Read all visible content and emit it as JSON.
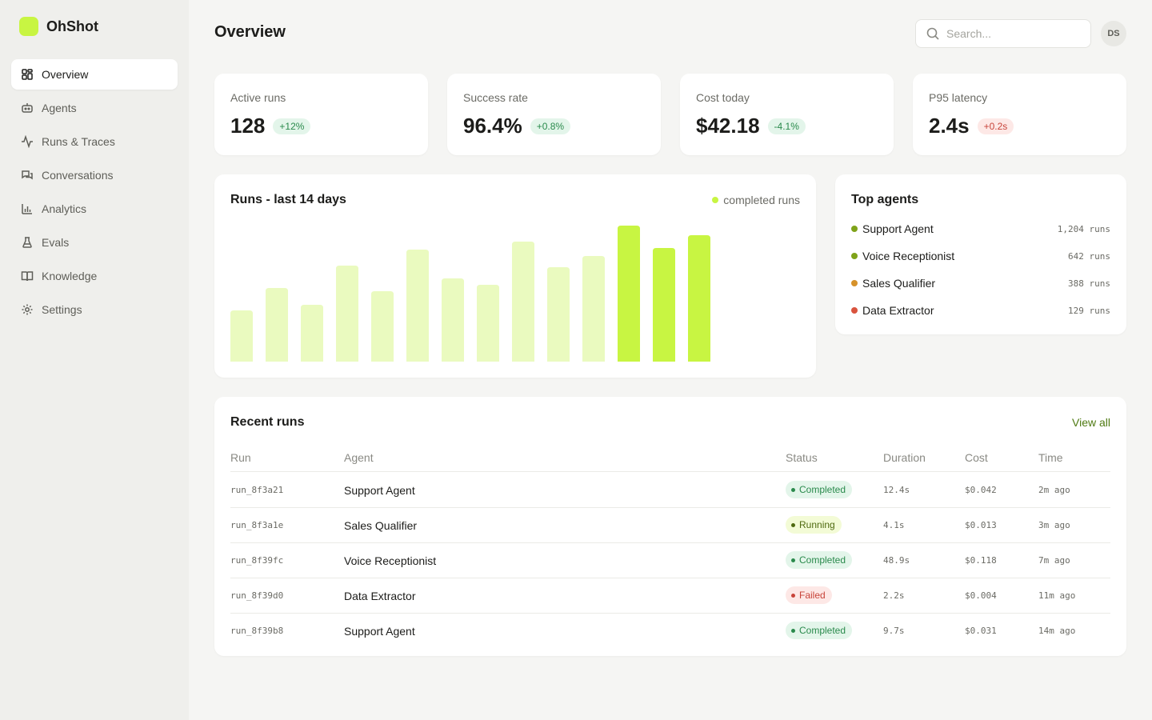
{
  "app": {
    "name": "OhShot",
    "brand_color": "#c8f542"
  },
  "sidebar": {
    "items": [
      {
        "label": "Overview",
        "icon": "grid-icon",
        "active": true
      },
      {
        "label": "Agents",
        "icon": "robot-icon",
        "active": false
      },
      {
        "label": "Runs & Traces",
        "icon": "activity-icon",
        "active": false
      },
      {
        "label": "Conversations",
        "icon": "chat-icon",
        "active": false
      },
      {
        "label": "Analytics",
        "icon": "bar-chart-icon",
        "active": false
      },
      {
        "label": "Evals",
        "icon": "flask-icon",
        "active": false
      },
      {
        "label": "Knowledge",
        "icon": "book-icon",
        "active": false
      },
      {
        "label": "Settings",
        "icon": "gear-icon",
        "active": false
      }
    ]
  },
  "header": {
    "title": "Overview",
    "search_placeholder": "Search...",
    "avatar_initials": "DS"
  },
  "kpis": [
    {
      "label": "Active runs",
      "value": "128",
      "delta": "+12%",
      "trend": "positive"
    },
    {
      "label": "Success rate",
      "value": "96.4%",
      "delta": "+0.8%",
      "trend": "positive"
    },
    {
      "label": "Cost today",
      "value": "$42.18",
      "delta": "-4.1%",
      "trend": "positive"
    },
    {
      "label": "P95 latency",
      "value": "2.4s",
      "delta": "+0.2s",
      "trend": "negative"
    }
  ],
  "runs_chart": {
    "title": "Runs - last 14 days",
    "legend": "completed runs",
    "colors": {
      "recent": "#c8f542",
      "past": "#eafabf"
    }
  },
  "chart_data": {
    "type": "bar",
    "values": [
      64,
      92,
      71,
      120,
      88,
      140,
      104,
      96,
      150,
      118,
      132,
      170,
      142,
      158
    ],
    "highlighted_last": 3,
    "series": [
      {
        "name": "completed runs"
      }
    ]
  },
  "top_agents": {
    "title": "Top agents",
    "items": [
      {
        "name": "Support Agent",
        "runs": "1,204 runs",
        "color": "#7fa31a"
      },
      {
        "name": "Voice Receptionist",
        "runs": "642 runs",
        "color": "#7fa31a"
      },
      {
        "name": "Sales Qualifier",
        "runs": "388 runs",
        "color": "#d6922a"
      },
      {
        "name": "Data Extractor",
        "runs": "129 runs",
        "color": "#d9533e"
      }
    ]
  },
  "recent_runs": {
    "title": "Recent runs",
    "view_all": "View all",
    "columns": [
      "Run",
      "Agent",
      "Status",
      "Duration",
      "Cost",
      "Time"
    ],
    "rows": [
      {
        "run": "run_8f3a21",
        "agent": "Support Agent",
        "status": "Completed",
        "status_kind": "completed",
        "duration": "12.4s",
        "cost": "$0.042",
        "time": "2m ago"
      },
      {
        "run": "run_8f3a1e",
        "agent": "Sales Qualifier",
        "status": "Running",
        "status_kind": "running",
        "duration": "4.1s",
        "cost": "$0.013",
        "time": "3m ago"
      },
      {
        "run": "run_8f39fc",
        "agent": "Voice Receptionist",
        "status": "Completed",
        "status_kind": "completed",
        "duration": "48.9s",
        "cost": "$0.118",
        "time": "7m ago"
      },
      {
        "run": "run_8f39d0",
        "agent": "Data Extractor",
        "status": "Failed",
        "status_kind": "failed",
        "duration": "2.2s",
        "cost": "$0.004",
        "time": "11m ago"
      },
      {
        "run": "run_8f39b8",
        "agent": "Support Agent",
        "status": "Completed",
        "status_kind": "completed",
        "duration": "9.7s",
        "cost": "$0.031",
        "time": "14m ago"
      }
    ]
  }
}
